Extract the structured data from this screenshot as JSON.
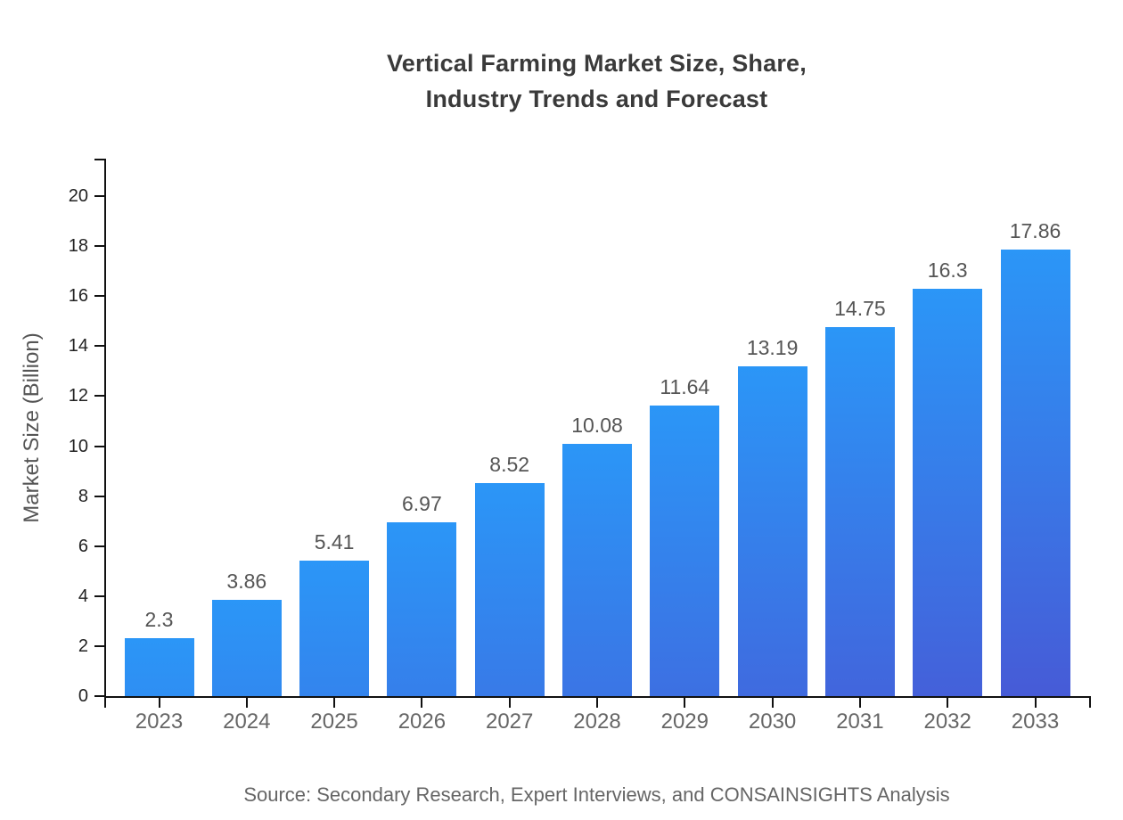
{
  "chart_data": {
    "type": "bar",
    "title_lines": [
      "Vertical Farming Market Size, Share,",
      "Industry Trends and Forecast"
    ],
    "categories": [
      "2023",
      "2024",
      "2025",
      "2026",
      "2027",
      "2028",
      "2029",
      "2030",
      "2031",
      "2032",
      "2033"
    ],
    "values": [
      2.3,
      3.86,
      5.41,
      6.97,
      8.52,
      10.08,
      11.64,
      13.19,
      14.75,
      16.3,
      17.86
    ],
    "value_labels": [
      "2.3",
      "3.86",
      "5.41",
      "6.97",
      "8.52",
      "10.08",
      "11.64",
      "13.19",
      "14.75",
      "16.3",
      "17.86"
    ],
    "xlabel": "",
    "ylabel": "Market Size (Billion)",
    "ylim": [
      0,
      21.5
    ],
    "yticks": [
      0,
      2,
      4,
      6,
      8,
      10,
      12,
      14,
      16,
      18,
      20
    ],
    "grid": false,
    "legend": "none",
    "source": "Source: Secondary Research, Expert Interviews, and CONSAINSIGHTS Analysis",
    "colors": {
      "bar_gradient_top": "#2b96f7",
      "bar_gradient_bottom": "#4c4fd0",
      "axis": "#111111",
      "y_tick_label": "#222222",
      "x_tick_label": "#666666",
      "value_label": "#555555",
      "title": "#3a3a3a",
      "ylabel": "#555555",
      "source": "#666666",
      "background": "#ffffff"
    }
  }
}
